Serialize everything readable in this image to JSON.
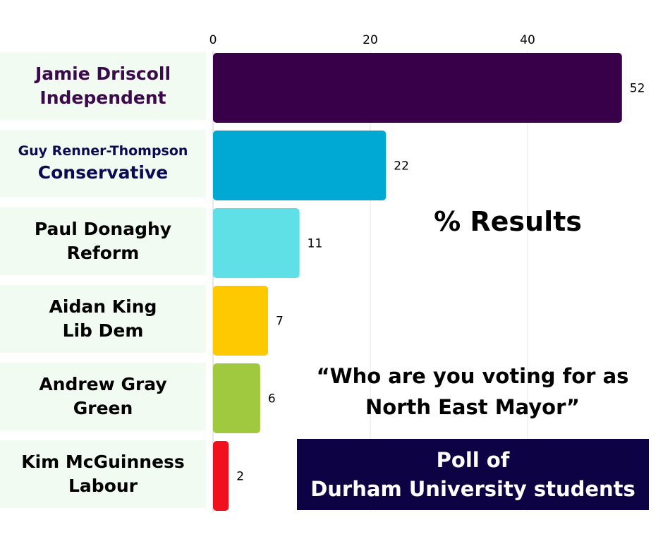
{
  "chart_data": {
    "type": "bar",
    "orientation": "horizontal",
    "title": "% Results",
    "xlim": [
      0,
      60
    ],
    "x_ticks": [
      "0",
      "20",
      "40"
    ],
    "grid": true,
    "categories": [
      {
        "name": "Jamie Driscoll",
        "party": "Independent"
      },
      {
        "name": "Guy Renner-Thompson",
        "party": "Conservative"
      },
      {
        "name": "Paul Donaghy",
        "party": "Reform"
      },
      {
        "name": "Aidan King",
        "party": "Lib Dem"
      },
      {
        "name": "Andrew Gray",
        "party": "Green"
      },
      {
        "name": "Kim McGuinness",
        "party": "Labour"
      }
    ],
    "values": [
      52,
      22,
      11,
      7,
      6,
      2
    ],
    "value_labels": [
      "52",
      "22",
      "11",
      "7",
      "6",
      "2"
    ],
    "colors": [
      "#370048",
      "#00a8d4",
      "#5fe0e6",
      "#ffc900",
      "#a1c93f",
      "#f0101e"
    ],
    "label_colors": [
      "#3a0a4a",
      "#0b0b52",
      "#000000",
      "#000000",
      "#000000",
      "#000000"
    ]
  },
  "annotations": {
    "question_line1": "“Who are you voting for as",
    "question_line2": "North East Mayor”",
    "poll_line1": "Poll of",
    "poll_line2": "Durham University students"
  },
  "colors": {
    "label_background": "#f1fbf2",
    "poll_box_background": "#0d0244",
    "gridline": "#e6e6e6"
  }
}
